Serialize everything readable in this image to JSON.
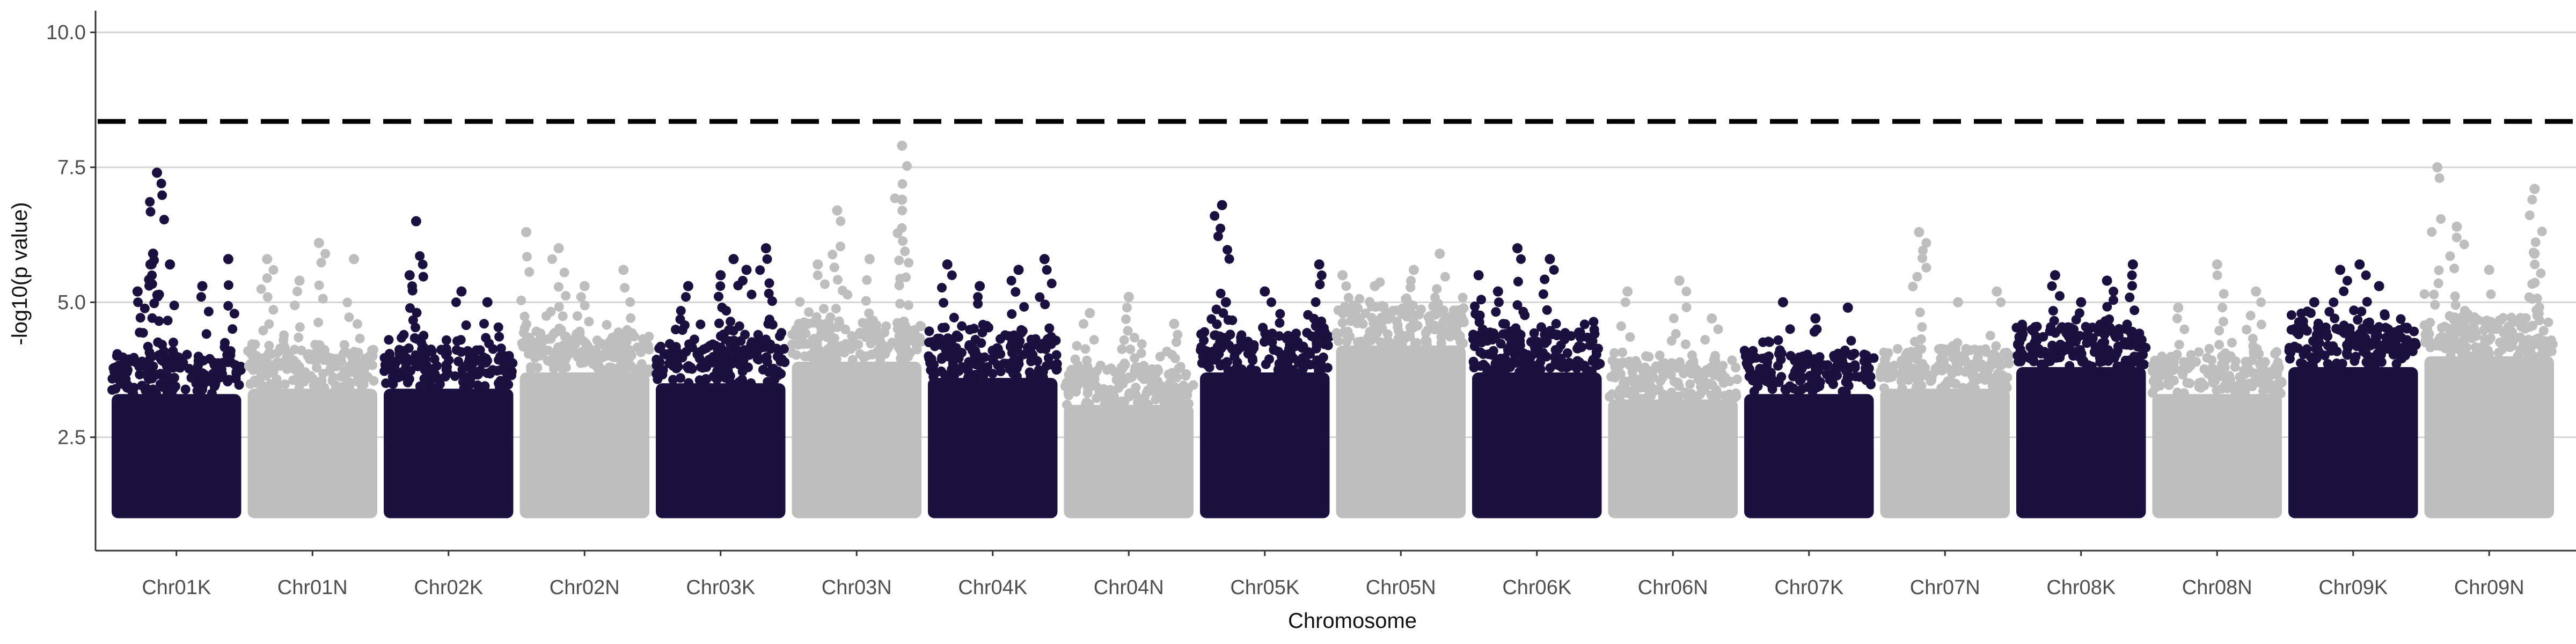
{
  "chart_data": {
    "type": "scatter",
    "title": "",
    "xlabel": "Chromosome",
    "ylabel": "-log10(p value)",
    "ylim": [
      0.4,
      10.4
    ],
    "yticks": [
      2.5,
      5.0,
      7.5,
      10.0
    ],
    "ytick_labels": [
      "2.5",
      "5.0",
      "7.5",
      "10.0"
    ],
    "grid": "horizontal major",
    "legend": "none",
    "threshold": 8.35,
    "colors": {
      "dark": "#1c1040",
      "light": "#bebebe",
      "threshold": "#000000",
      "grid": "#d4d4d4",
      "axis": "#333333"
    },
    "categories": [
      "Chr01K",
      "Chr01N",
      "Chr02K",
      "Chr02N",
      "Chr03K",
      "Chr03N",
      "Chr04K",
      "Chr04N",
      "Chr05K",
      "Chr05N",
      "Chr06K",
      "Chr06N",
      "Chr07K",
      "Chr07N",
      "Chr08K",
      "Chr08N",
      "Chr09K",
      "Chr09N"
    ],
    "series": [
      {
        "chromosome": "Chr01K",
        "color": "dark",
        "base_top": 3.9,
        "peaks": [
          [
            0.35,
            7.4
          ],
          [
            0.32,
            5.9
          ],
          [
            0.3,
            5.7
          ],
          [
            0.45,
            5.7
          ],
          [
            0.9,
            5.8
          ],
          [
            0.2,
            5.2
          ],
          [
            0.7,
            5.3
          ]
        ]
      },
      {
        "chromosome": "Chr01N",
        "color": "light",
        "base_top": 4.0,
        "peaks": [
          [
            0.15,
            5.8
          ],
          [
            0.55,
            6.1
          ],
          [
            0.82,
            5.8
          ],
          [
            0.4,
            5.4
          ]
        ]
      },
      {
        "chromosome": "Chr02K",
        "color": "dark",
        "base_top": 4.0,
        "peaks": [
          [
            0.25,
            6.5
          ],
          [
            0.2,
            5.5
          ],
          [
            0.6,
            5.2
          ],
          [
            0.8,
            5.0
          ]
        ]
      },
      {
        "chromosome": "Chr02N",
        "color": "light",
        "base_top": 4.3,
        "peaks": [
          [
            0.05,
            6.3
          ],
          [
            0.3,
            6.0
          ],
          [
            0.8,
            5.6
          ],
          [
            0.5,
            5.3
          ]
        ]
      },
      {
        "chromosome": "Chr03K",
        "color": "dark",
        "base_top": 4.1,
        "peaks": [
          [
            0.25,
            5.3
          ],
          [
            0.5,
            5.5
          ],
          [
            0.6,
            5.8
          ],
          [
            0.85,
            6.0
          ],
          [
            0.7,
            5.6
          ]
        ]
      },
      {
        "chromosome": "Chr03N",
        "color": "light",
        "base_top": 4.5,
        "peaks": [
          [
            0.85,
            7.9
          ],
          [
            0.85,
            6.9
          ],
          [
            0.35,
            6.7
          ],
          [
            0.2,
            5.7
          ],
          [
            0.6,
            5.8
          ]
        ]
      },
      {
        "chromosome": "Chr04K",
        "color": "dark",
        "base_top": 4.2,
        "peaks": [
          [
            0.15,
            5.7
          ],
          [
            0.7,
            5.6
          ],
          [
            0.9,
            5.8
          ],
          [
            0.4,
            5.3
          ]
        ]
      },
      {
        "chromosome": "Chr04N",
        "color": "light",
        "base_top": 3.7,
        "peaks": [
          [
            0.2,
            4.8
          ],
          [
            0.5,
            5.1
          ],
          [
            0.85,
            4.6
          ]
        ]
      },
      {
        "chromosome": "Chr05K",
        "color": "dark",
        "base_top": 4.3,
        "peaks": [
          [
            0.17,
            6.8
          ],
          [
            0.5,
            5.2
          ],
          [
            0.92,
            5.7
          ],
          [
            0.2,
            5.0
          ]
        ]
      },
      {
        "chromosome": "Chr05N",
        "color": "light",
        "base_top": 4.8,
        "peaks": [
          [
            0.05,
            5.5
          ],
          [
            0.6,
            5.6
          ],
          [
            0.8,
            5.9
          ],
          [
            0.3,
            5.3
          ]
        ]
      },
      {
        "chromosome": "Chr06K",
        "color": "dark",
        "base_top": 4.3,
        "peaks": [
          [
            0.05,
            5.5
          ],
          [
            0.35,
            6.0
          ],
          [
            0.6,
            5.8
          ],
          [
            0.2,
            5.2
          ]
        ]
      },
      {
        "chromosome": "Chr06N",
        "color": "light",
        "base_top": 3.8,
        "peaks": [
          [
            0.15,
            5.2
          ],
          [
            0.55,
            5.4
          ],
          [
            0.8,
            4.7
          ]
        ]
      },
      {
        "chromosome": "Chr07K",
        "color": "dark",
        "base_top": 3.9,
        "peaks": [
          [
            0.3,
            5.0
          ],
          [
            0.8,
            4.9
          ],
          [
            0.55,
            4.7
          ]
        ]
      },
      {
        "chromosome": "Chr07N",
        "color": "light",
        "base_top": 4.0,
        "peaks": [
          [
            0.3,
            6.3
          ],
          [
            0.6,
            5.0
          ],
          [
            0.9,
            5.2
          ]
        ]
      },
      {
        "chromosome": "Chr08K",
        "color": "dark",
        "base_top": 4.4,
        "peaks": [
          [
            0.3,
            5.5
          ],
          [
            0.5,
            5.0
          ],
          [
            0.9,
            5.7
          ],
          [
            0.7,
            5.4
          ]
        ]
      },
      {
        "chromosome": "Chr08N",
        "color": "light",
        "base_top": 3.9,
        "peaks": [
          [
            0.5,
            5.7
          ],
          [
            0.8,
            5.2
          ],
          [
            0.2,
            4.9
          ]
        ]
      },
      {
        "chromosome": "Chr09K",
        "color": "dark",
        "base_top": 4.4,
        "peaks": [
          [
            0.4,
            5.6
          ],
          [
            0.55,
            5.7
          ],
          [
            0.7,
            5.3
          ],
          [
            0.2,
            5.0
          ]
        ]
      },
      {
        "chromosome": "Chr09N",
        "color": "light",
        "base_top": 4.6,
        "peaks": [
          [
            0.1,
            7.5
          ],
          [
            0.25,
            6.4
          ],
          [
            0.85,
            7.1
          ],
          [
            0.85,
            5.9
          ],
          [
            0.5,
            5.6
          ]
        ]
      }
    ]
  }
}
